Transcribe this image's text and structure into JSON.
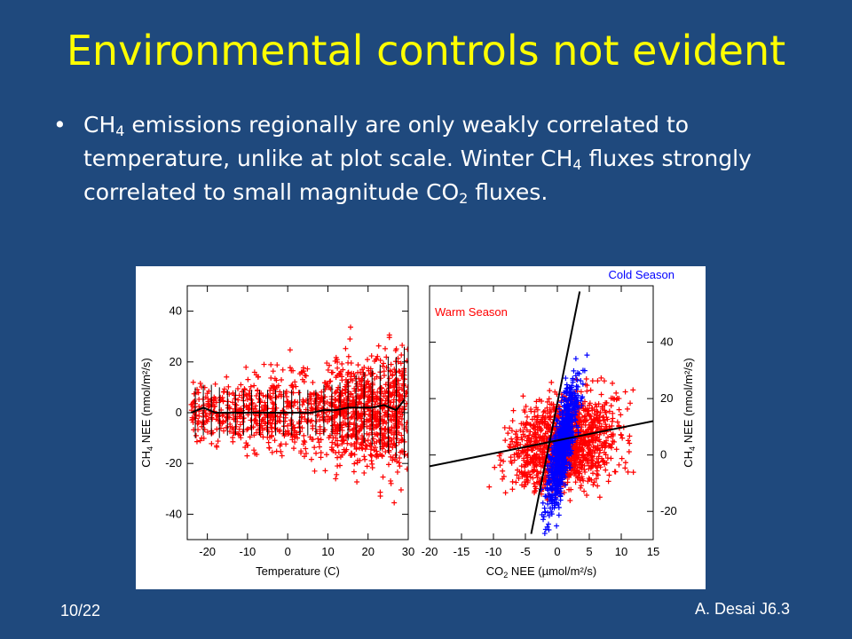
{
  "slide": {
    "title": "Environmental controls not evident",
    "bullet_parts": [
      "CH",
      "4",
      " emissions regionally are only weakly correlated to temperature, unlike at plot scale. Winter CH",
      "4",
      " fluxes strongly correlated to small magnitude CO",
      "2",
      " fluxes."
    ],
    "footer_left": "10/22",
    "footer_right": "A. Desai J6.3"
  },
  "colors": {
    "background": "#1f497d",
    "title": "#ffff00",
    "warm": "#ff0000",
    "cold": "#0000ff"
  },
  "chart_data": [
    {
      "type": "scatter",
      "title": "",
      "xlabel": "Temperature (C)",
      "ylabel": "CH4 NEE (nmol/m²/s)",
      "ylabel_parts": [
        "CH",
        "4",
        " NEE (nmol/m²/s)"
      ],
      "xlim": [
        -25,
        30
      ],
      "ylim": [
        -50,
        50
      ],
      "xticks": [
        -20,
        -10,
        0,
        10,
        20,
        30
      ],
      "yticks": [
        -40,
        -20,
        0,
        20,
        40
      ],
      "series": [
        {
          "name": "",
          "kind": "scatter",
          "color": "#ff0000",
          "marker": "+",
          "x_range": [
            -24,
            30
          ],
          "y_spread": 22
        },
        {
          "name": "",
          "kind": "line",
          "color": "#000000",
          "x": [
            -24,
            -21,
            -18,
            -15,
            -12,
            -9,
            -6,
            -3,
            0,
            3,
            6,
            9,
            12,
            15,
            18,
            21,
            24,
            27,
            29
          ],
          "y": [
            0,
            2,
            0,
            0,
            0,
            0,
            0,
            0,
            0,
            0,
            0,
            1,
            1,
            2,
            2,
            2,
            3,
            1,
            5
          ]
        },
        {
          "name": "",
          "kind": "errorbar",
          "color": "#000000",
          "x": [
            -23,
            -21,
            -19,
            -17,
            -15,
            -13,
            -11,
            -9,
            -7,
            -5,
            -3,
            -1,
            1,
            3,
            5,
            7,
            9,
            11,
            13,
            15,
            17,
            19,
            21,
            23,
            25,
            27,
            29
          ],
          "y": [
            0,
            1,
            1,
            0,
            0,
            0,
            0,
            0,
            0,
            0,
            0,
            0,
            0,
            0,
            0,
            0,
            1,
            1,
            1,
            1,
            2,
            2,
            2,
            2,
            3,
            2,
            4
          ],
          "err": [
            10,
            10,
            10,
            10,
            9,
            9,
            9,
            9,
            9,
            9,
            9,
            9,
            9,
            9,
            9,
            9,
            10,
            10,
            11,
            12,
            13,
            14,
            15,
            17,
            19,
            20,
            22
          ]
        }
      ]
    },
    {
      "type": "scatter",
      "title": "",
      "xlabel": "CO2 NEE (µmol/m²/s)",
      "xlabel_parts": [
        "CO",
        "2",
        " NEE (µmol/m²/s)"
      ],
      "ylabel": "CH4 NEE (nmol/m²/s)",
      "ylabel_parts": [
        "CH",
        "4",
        " NEE (nmol/m²/s)"
      ],
      "xlim": [
        -20,
        15
      ],
      "ylim": [
        -30,
        60
      ],
      "xticks": [
        -20,
        -15,
        -10,
        -5,
        0,
        5,
        10,
        15
      ],
      "yticks": [
        -20,
        0,
        20,
        40
      ],
      "series": [
        {
          "name": "Warm Season",
          "kind": "scatter",
          "color": "#ff0000",
          "marker": "+",
          "x_range": [
            -20,
            15
          ],
          "y_spread": 16
        },
        {
          "name": "Cold Season",
          "kind": "scatter",
          "color": "#0000ff",
          "marker": "+",
          "x_range": [
            -4,
            5
          ],
          "y_spread": 12
        },
        {
          "name": "",
          "kind": "line",
          "color": "#000000",
          "x": [
            -20,
            15
          ],
          "y": [
            -4,
            12
          ]
        },
        {
          "name": "",
          "kind": "line",
          "color": "#000000",
          "x": [
            -4.1,
            3.5
          ],
          "y": [
            -28,
            58
          ]
        }
      ]
    }
  ]
}
